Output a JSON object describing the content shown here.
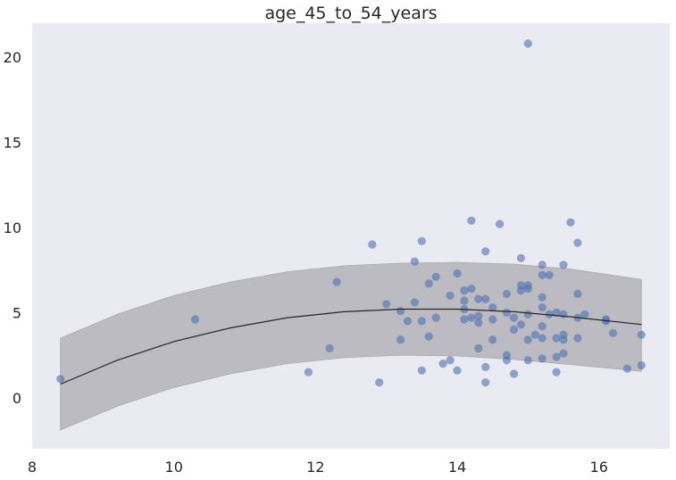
{
  "chart_data": {
    "type": "scatter",
    "title": "age_45_to_54_years",
    "xlabel": "",
    "ylabel": "",
    "xlim": [
      8,
      17
    ],
    "ylim": [
      -3,
      22
    ],
    "xticks": [
      8,
      10,
      12,
      14,
      16
    ],
    "yticks": [
      0,
      5,
      10,
      15,
      20
    ],
    "grid": false,
    "colors": {
      "background": "#eaeaf2",
      "points": "#4c72b0",
      "band": "#a9a9ad",
      "fit_line": "#262626"
    },
    "fit": {
      "name": "quadratic fit",
      "x": [
        8.4,
        9.2,
        10.0,
        10.8,
        11.6,
        12.4,
        13.2,
        14.0,
        14.8,
        15.6,
        16.6
      ],
      "y": [
        0.8,
        2.2,
        3.3,
        4.1,
        4.7,
        5.05,
        5.2,
        5.2,
        5.05,
        4.75,
        4.3
      ],
      "lower": [
        -1.9,
        -0.5,
        0.6,
        1.4,
        2.0,
        2.35,
        2.5,
        2.45,
        2.25,
        1.95,
        1.55
      ],
      "upper": [
        3.5,
        4.9,
        6.0,
        6.8,
        7.4,
        7.75,
        7.9,
        7.95,
        7.85,
        7.55,
        6.95
      ]
    },
    "series": [
      {
        "name": "observations",
        "points": [
          [
            8.4,
            1.1
          ],
          [
            10.3,
            4.6
          ],
          [
            11.9,
            1.5
          ],
          [
            12.2,
            2.9
          ],
          [
            12.3,
            6.8
          ],
          [
            12.8,
            9.0
          ],
          [
            12.9,
            0.9
          ],
          [
            13.0,
            5.5
          ],
          [
            13.2,
            3.4
          ],
          [
            13.2,
            5.1
          ],
          [
            13.3,
            4.5
          ],
          [
            13.4,
            8.0
          ],
          [
            13.4,
            5.6
          ],
          [
            13.5,
            9.2
          ],
          [
            13.5,
            4.5
          ],
          [
            13.5,
            1.6
          ],
          [
            13.6,
            6.7
          ],
          [
            13.6,
            3.6
          ],
          [
            13.7,
            7.1
          ],
          [
            13.7,
            4.7
          ],
          [
            13.8,
            2.0
          ],
          [
            13.9,
            6.0
          ],
          [
            13.9,
            2.2
          ],
          [
            14.0,
            7.3
          ],
          [
            14.0,
            1.6
          ],
          [
            14.1,
            6.3
          ],
          [
            14.1,
            5.7
          ],
          [
            14.1,
            5.2
          ],
          [
            14.1,
            4.6
          ],
          [
            14.2,
            10.4
          ],
          [
            14.2,
            6.4
          ],
          [
            14.2,
            4.7
          ],
          [
            14.3,
            5.8
          ],
          [
            14.3,
            4.8
          ],
          [
            14.3,
            4.4
          ],
          [
            14.3,
            2.9
          ],
          [
            14.4,
            8.6
          ],
          [
            14.4,
            5.8
          ],
          [
            14.4,
            1.8
          ],
          [
            14.4,
            0.9
          ],
          [
            14.5,
            5.3
          ],
          [
            14.5,
            4.6
          ],
          [
            14.5,
            3.4
          ],
          [
            14.6,
            10.2
          ],
          [
            14.7,
            6.1
          ],
          [
            14.7,
            5.0
          ],
          [
            14.7,
            2.5
          ],
          [
            14.7,
            2.2
          ],
          [
            14.8,
            4.7
          ],
          [
            14.8,
            4.0
          ],
          [
            14.8,
            1.4
          ],
          [
            14.9,
            8.2
          ],
          [
            14.9,
            6.6
          ],
          [
            14.9,
            6.3
          ],
          [
            14.9,
            4.3
          ],
          [
            15.0,
            20.8
          ],
          [
            15.0,
            6.6
          ],
          [
            15.0,
            6.4
          ],
          [
            15.0,
            4.9
          ],
          [
            15.0,
            3.4
          ],
          [
            15.0,
            2.2
          ],
          [
            15.1,
            3.7
          ],
          [
            15.2,
            7.8
          ],
          [
            15.2,
            7.2
          ],
          [
            15.2,
            5.9
          ],
          [
            15.2,
            5.3
          ],
          [
            15.2,
            4.2
          ],
          [
            15.2,
            3.5
          ],
          [
            15.2,
            2.3
          ],
          [
            15.3,
            7.2
          ],
          [
            15.3,
            4.9
          ],
          [
            15.4,
            5.0
          ],
          [
            15.4,
            3.5
          ],
          [
            15.4,
            2.4
          ],
          [
            15.4,
            1.5
          ],
          [
            15.5,
            7.8
          ],
          [
            15.5,
            4.9
          ],
          [
            15.5,
            3.7
          ],
          [
            15.5,
            3.4
          ],
          [
            15.5,
            2.6
          ],
          [
            15.6,
            10.3
          ],
          [
            15.7,
            9.1
          ],
          [
            15.7,
            6.1
          ],
          [
            15.7,
            4.7
          ],
          [
            15.7,
            3.5
          ],
          [
            15.8,
            4.9
          ],
          [
            16.1,
            4.6
          ],
          [
            16.1,
            4.5
          ],
          [
            16.2,
            3.8
          ],
          [
            16.4,
            1.7
          ],
          [
            16.6,
            3.7
          ],
          [
            16.6,
            1.9
          ]
        ]
      }
    ]
  }
}
